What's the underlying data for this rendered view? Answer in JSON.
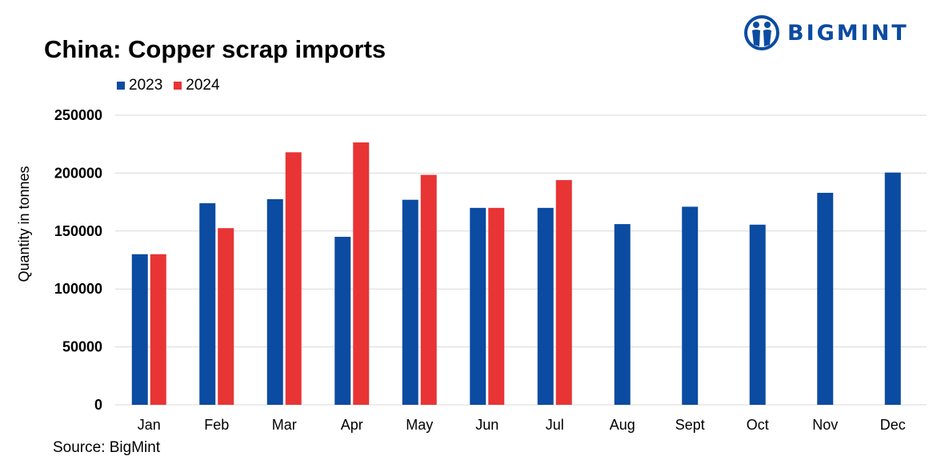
{
  "brand": {
    "name": "BIGMINT",
    "color": "#0B4BA1"
  },
  "colors": {
    "series_2023": "#0B4BA1",
    "series_2024": "#E83434",
    "grid": "#D9D9D9"
  },
  "source": "Source: BigMint",
  "chart_data": {
    "type": "bar",
    "title": "China: Copper scrap imports",
    "xlabel": "",
    "ylabel": "Quantity in tonnes",
    "ylim": [
      0,
      250000
    ],
    "yticks": [
      "0",
      "50000",
      "100000",
      "150000",
      "200000",
      "250000"
    ],
    "grid": true,
    "legend_position": "top-left",
    "categories": [
      "Jan",
      "Feb",
      "Mar",
      "Apr",
      "May",
      "Jun",
      "Jul",
      "Aug",
      "Sept",
      "Oct",
      "Nov",
      "Dec"
    ],
    "series": [
      {
        "name": "2023",
        "color": "#0B4BA1",
        "values": [
          130000,
          174000,
          177500,
          145000,
          177000,
          170000,
          170000,
          156000,
          171000,
          155500,
          183000,
          200500
        ]
      },
      {
        "name": "2024",
        "color": "#E83434",
        "values": [
          130000,
          152500,
          218000,
          226500,
          198500,
          170000,
          194000,
          null,
          null,
          null,
          null,
          null
        ]
      }
    ]
  }
}
